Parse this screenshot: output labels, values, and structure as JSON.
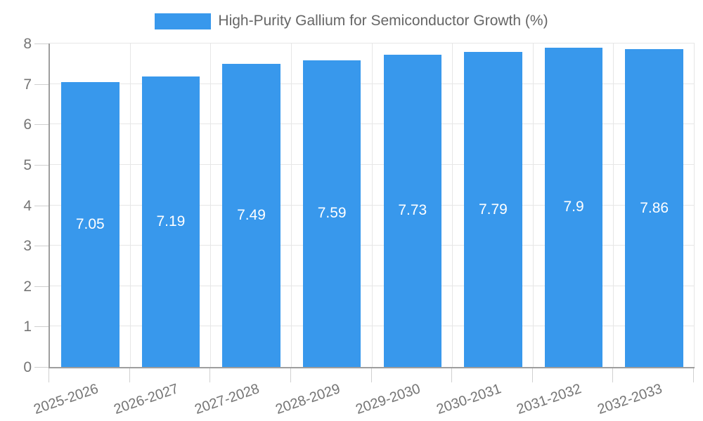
{
  "legend": {
    "label": "High-Purity Gallium for Semiconductor Growth (%)"
  },
  "chart_data": {
    "type": "bar",
    "title": "High-Purity Gallium for Semiconductor Growth (%)",
    "categories": [
      "2025-2026",
      "2026-2027",
      "2027-2028",
      "2028-2029",
      "2029-2030",
      "2030-2031",
      "2031-2032",
      "2032-2033"
    ],
    "values": [
      7.05,
      7.19,
      7.49,
      7.59,
      7.73,
      7.79,
      7.9,
      7.86
    ],
    "value_labels": [
      "7.05",
      "7.19",
      "7.49",
      "7.59",
      "7.73",
      "7.79",
      "7.9",
      "7.86"
    ],
    "xlabel": "",
    "ylabel": "",
    "ylim": [
      0,
      8
    ],
    "yticks": [
      0,
      1,
      2,
      3,
      4,
      5,
      6,
      7,
      8
    ],
    "grid": true,
    "legend_position": "top",
    "colors": {
      "bar": "#3898EC",
      "value_label": "#FFFFFF",
      "axis_text": "#757575",
      "legend_text": "#666666",
      "grid_line": "#E6E6E6",
      "axis_line": "#9E9E9E",
      "tick_mark": "#D0D0D0"
    }
  }
}
